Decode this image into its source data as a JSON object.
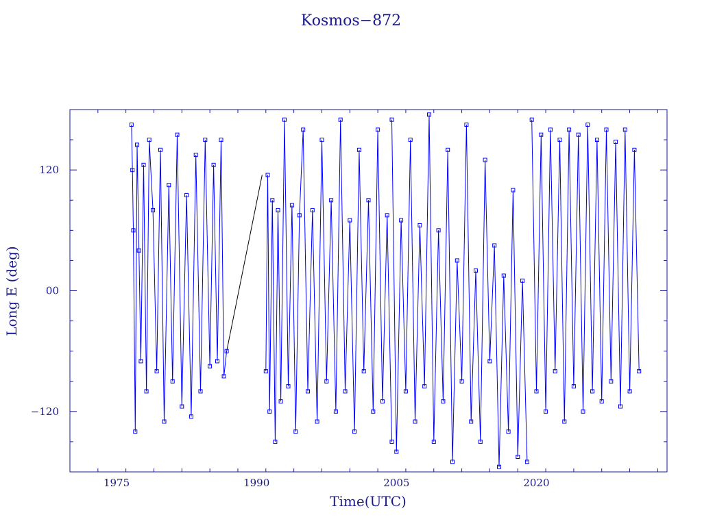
{
  "chart_data": {
    "type": "scatter",
    "title": "Kosmos−872",
    "xlabel": "Time(UTC)",
    "ylabel": "Long E (deg)",
    "xlim": [
      1970,
      2034
    ],
    "ylim": [
      -180,
      180
    ],
    "x_ticks": [
      1975,
      1990,
      2005,
      2020
    ],
    "x_tick_labels": [
      "1975",
      "1990",
      "2005",
      "2020"
    ],
    "y_ticks": [
      -120,
      0,
      120
    ],
    "y_tick_labels": [
      "−120",
      "00",
      "120"
    ],
    "grid": false,
    "legend": "none",
    "colors": {
      "series": "#0000ff",
      "axis": "#1a1a8c",
      "connector": "#000000"
    },
    "series": [
      {
        "values_note_free": true,
        "x": [
          1976.6,
          1976.7,
          1976.8,
          1977.0,
          1977.2,
          1977.4,
          1977.6,
          1977.9,
          1978.2,
          1978.5,
          1978.9,
          1979.3,
          1979.7,
          1980.1,
          1980.6,
          1981.0,
          1981.5,
          1982.0,
          1982.5,
          1983.0,
          1983.5,
          1984.0,
          1984.5,
          1985.0,
          1985.4,
          1985.8,
          1986.2,
          1986.5,
          1986.8
        ],
        "y": [
          165,
          120,
          60,
          -140,
          145,
          40,
          -70,
          125,
          -100,
          150,
          80,
          -80,
          140,
          -130,
          105,
          -90,
          155,
          -115,
          95,
          -125,
          135,
          -100,
          150,
          -75,
          125,
          -70,
          150,
          -85,
          -60
        ]
      },
      {
        "x": [
          1991.0,
          1991.2,
          1991.4,
          1991.7,
          1992.0,
          1992.3,
          1992.6,
          1993.0,
          1993.4,
          1993.8,
          1994.2,
          1994.6,
          1995.0,
          1995.5,
          1996.0,
          1996.5,
          1997.0,
          1997.5,
          1998.0,
          1998.5,
          1999.0,
          1999.5,
          2000.0,
          2000.5,
          2001.0,
          2001.5,
          2002.0,
          2002.5,
          2003.0,
          2003.5,
          2004.0,
          2004.5
        ],
        "y": [
          -80,
          115,
          -120,
          90,
          -150,
          80,
          -110,
          170,
          -95,
          85,
          -140,
          75,
          160,
          -100,
          80,
          -130,
          150,
          -90,
          90,
          -120,
          170,
          -100,
          70,
          -140,
          140,
          -80,
          90,
          -120,
          160,
          -110,
          75,
          -150
        ]
      },
      {
        "x": [
          2004.5,
          2005.0,
          2005.5,
          2006.0,
          2006.5,
          2007.0,
          2007.5,
          2008.0,
          2008.5,
          2009.0,
          2009.5,
          2010.0,
          2010.5,
          2011.0,
          2011.5,
          2012.0,
          2012.5,
          2013.0,
          2013.5,
          2014.0,
          2014.5,
          2015.0,
          2015.5,
          2016.0,
          2016.5,
          2017.0,
          2017.5,
          2018.0,
          2018.5,
          2019.0
        ],
        "y": [
          170,
          -160,
          70,
          -100,
          150,
          -130,
          65,
          -95,
          175,
          -150,
          60,
          -110,
          140,
          -170,
          30,
          -90,
          165,
          -130,
          20,
          -150,
          130,
          -70,
          45,
          -175,
          15,
          -140,
          100,
          -165,
          10,
          -170
        ]
      },
      {
        "x": [
          2019.5,
          2020.0,
          2020.5,
          2021.0,
          2021.5,
          2022.0,
          2022.5,
          2023.0,
          2023.5,
          2024.0,
          2024.5,
          2025.0,
          2025.5,
          2026.0,
          2026.5,
          2027.0,
          2027.5,
          2028.0,
          2028.5,
          2029.0,
          2029.5,
          2030.0,
          2030.5,
          2031.0
        ],
        "y": [
          170,
          -100,
          155,
          -120,
          160,
          -80,
          150,
          -130,
          160,
          -95,
          155,
          -120,
          165,
          -100,
          150,
          -110,
          160,
          -90,
          148,
          -115,
          160,
          -100,
          140,
          -80
        ]
      }
    ],
    "connector": {
      "x": [
        1986.8,
        1990.6
      ],
      "y": [
        -60,
        115
      ]
    }
  }
}
